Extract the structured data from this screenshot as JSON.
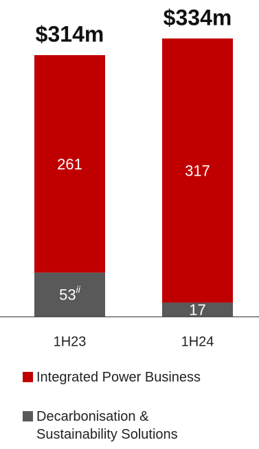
{
  "chart_data": {
    "type": "stacked_bar",
    "categories": [
      "1H23",
      "1H24"
    ],
    "series": [
      {
        "name": "Integrated Power Business",
        "color": "#c00000",
        "values": [
          261,
          317
        ]
      },
      {
        "name": "Decarbonisation & Sustainability Solutions",
        "color": "#595959",
        "values": [
          53,
          17
        ]
      }
    ],
    "totals": {
      "values": [
        314,
        334
      ],
      "value_labels": [
        "$314m",
        "$334m"
      ]
    },
    "annotation": "ii",
    "legend": "bottom"
  }
}
